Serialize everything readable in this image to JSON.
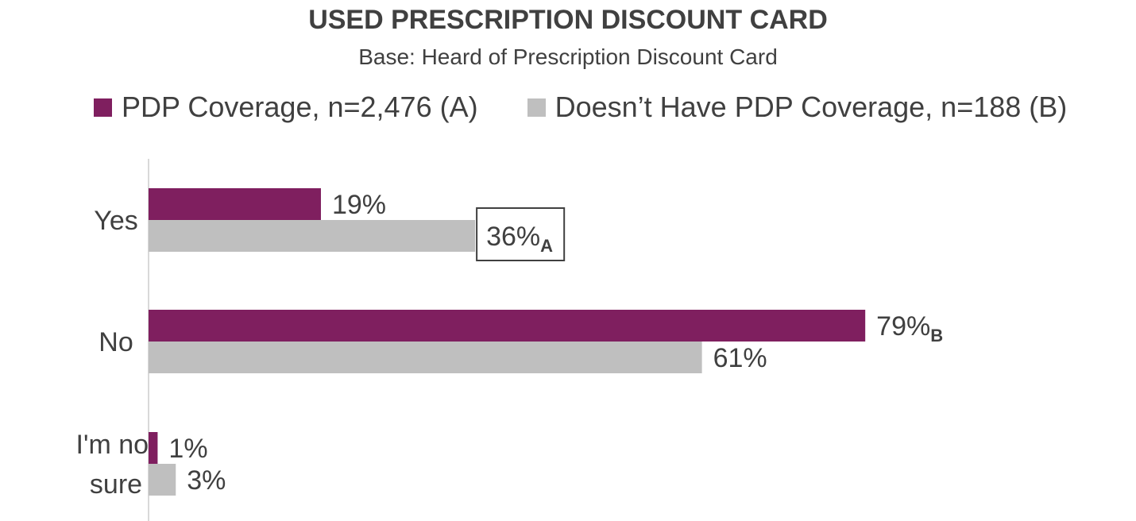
{
  "title": "USED PRESCRIPTION DISCOUNT CARD",
  "subtitle": "Base: Heard of Prescription Discount Card",
  "colors": {
    "series_a": "#7f1f5f",
    "series_b": "#bfbfbf",
    "text": "#404040",
    "axis": "#d9d9d9"
  },
  "chart_data": {
    "type": "bar",
    "orientation": "horizontal",
    "categories": [
      "Yes",
      "No",
      "I'm not sure"
    ],
    "series": [
      {
        "name": "PDP Coverage, n=2,476 (A)",
        "values": [
          19,
          79,
          1
        ],
        "labels": [
          "19%",
          "79%",
          "1%"
        ],
        "significance": [
          "",
          "B",
          ""
        ]
      },
      {
        "name": "Doesn’t Have PDP Coverage, n=188 (B)",
        "values": [
          36,
          61,
          3
        ],
        "labels": [
          "36%",
          "61%",
          "3%"
        ],
        "significance": [
          "A",
          "",
          ""
        ]
      }
    ],
    "highlighted": [
      {
        "series": 1,
        "category": 0
      }
    ],
    "xlim": [
      0,
      100
    ],
    "unit": "%",
    "legend_position": "top",
    "grid": false
  }
}
